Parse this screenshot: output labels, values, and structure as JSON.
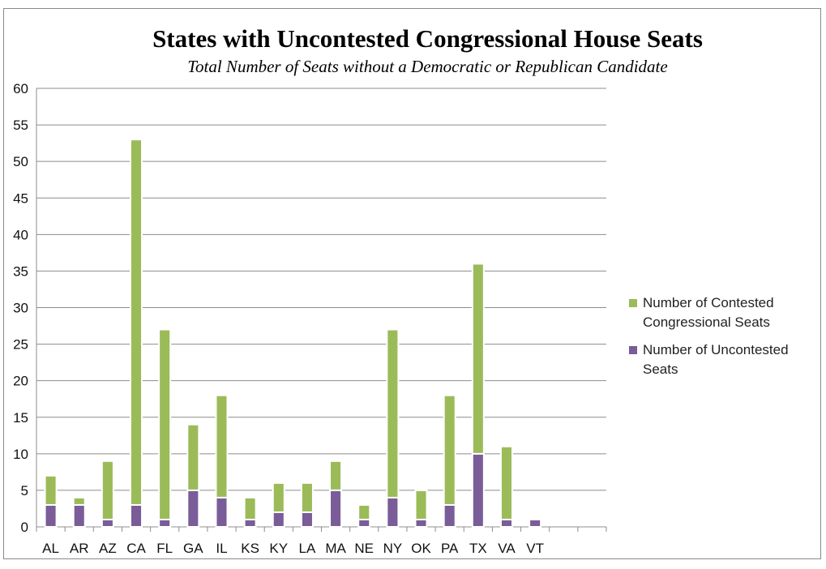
{
  "chart_data": {
    "type": "bar",
    "stacked": true,
    "title": "States with Uncontested Congressional House Seats",
    "subtitle": "Total Number of Seats without a Democratic or Republican Candidate",
    "categories": [
      "AL",
      "AR",
      "AZ",
      "CA",
      "FL",
      "GA",
      "IL",
      "KS",
      "KY",
      "LA",
      "MA",
      "NE",
      "NY",
      "OK",
      "PA",
      "TX",
      "VA",
      "VT"
    ],
    "series": [
      {
        "name": "Number of Uncontested Seats",
        "color": "#7a5c99",
        "values": [
          3,
          3,
          1,
          3,
          1,
          5,
          4,
          1,
          2,
          2,
          5,
          1,
          4,
          1,
          3,
          10,
          1,
          1
        ]
      },
      {
        "name": "Number of Contested Congressional Seats",
        "color": "#9bbb59",
        "values": [
          4,
          1,
          8,
          50,
          26,
          9,
          14,
          3,
          4,
          4,
          4,
          2,
          23,
          4,
          15,
          26,
          10,
          0
        ]
      }
    ],
    "ylim": [
      0,
      60
    ],
    "yticks": [
      0,
      5,
      10,
      15,
      20,
      25,
      30,
      35,
      40,
      45,
      50,
      55,
      60
    ],
    "grid": true,
    "legend_position": "right"
  },
  "legend": {
    "items": [
      {
        "label": "Number of Contested Congressional Seats",
        "color": "#9bbb59"
      },
      {
        "label": "Number of Uncontested Seats",
        "color": "#7a5c99"
      }
    ]
  }
}
